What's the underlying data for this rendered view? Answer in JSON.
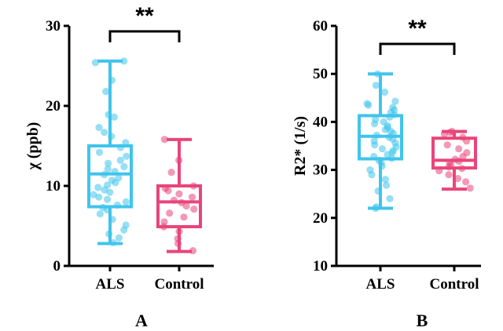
{
  "colors": {
    "als": "#40c4ec",
    "control": "#e8457a",
    "axis": "#000000"
  },
  "chart_data": [
    {
      "panel": "A",
      "type": "box",
      "ylabel": "χ (ppb)",
      "ylim": [
        0,
        30
      ],
      "yticks": [
        0,
        10,
        20,
        30
      ],
      "categories": [
        "ALS",
        "Control"
      ],
      "significance": "**",
      "series": [
        {
          "name": "ALS",
          "color": "#40c4ec",
          "box": {
            "min": 2.8,
            "q1": 7.4,
            "median": 11.5,
            "q3": 15.0,
            "max": 25.6
          },
          "points": [
            25.6,
            25.4,
            23.2,
            21.8,
            18.9,
            18.6,
            17.3,
            16.7,
            16.2,
            15.4,
            14.8,
            14.2,
            13.7,
            13.2,
            12.8,
            12.4,
            12.1,
            11.8,
            11.4,
            11.0,
            10.7,
            10.4,
            10.1,
            9.8,
            9.5,
            9.2,
            8.9,
            8.6,
            8.3,
            8.0,
            7.6,
            7.3,
            7.0,
            6.5,
            5.8,
            5.1,
            4.5,
            4.0,
            3.5,
            2.9
          ]
        },
        {
          "name": "Control",
          "color": "#e8457a",
          "box": {
            "min": 1.8,
            "q1": 4.9,
            "median": 8.0,
            "q3": 10.0,
            "max": 15.8
          },
          "points": [
            15.8,
            13.2,
            11.7,
            10.0,
            9.7,
            9.4,
            9.0,
            8.6,
            8.2,
            7.9,
            7.5,
            7.1,
            6.6,
            6.1,
            5.5,
            4.9,
            4.3,
            3.4,
            2.8,
            1.9
          ]
        }
      ]
    },
    {
      "panel": "B",
      "type": "box",
      "ylabel": "R2* (1/s)",
      "ylim": [
        10,
        60
      ],
      "yticks": [
        10,
        20,
        30,
        40,
        50,
        60
      ],
      "categories": [
        "ALS",
        "Control"
      ],
      "significance": "**",
      "series": [
        {
          "name": "ALS",
          "color": "#40c4ec",
          "box": {
            "min": 22.0,
            "q1": 32.3,
            "median": 37.0,
            "q3": 41.3,
            "max": 50.0
          },
          "points": [
            50.0,
            47.6,
            46.2,
            44.3,
            43.8,
            43.5,
            43.0,
            42.5,
            42.0,
            41.5,
            41.0,
            40.5,
            40.0,
            39.6,
            39.2,
            38.8,
            38.4,
            38.0,
            37.6,
            37.2,
            36.8,
            36.4,
            36.0,
            35.6,
            35.2,
            34.8,
            34.4,
            34.0,
            33.6,
            33.2,
            32.8,
            32.4,
            32.0,
            31.5,
            30.8,
            30.0,
            29.0,
            28.0,
            26.8,
            25.6,
            24.0,
            22.3,
            22.0
          ]
        },
        {
          "name": "Control",
          "color": "#e8457a",
          "box": {
            "min": 26.0,
            "q1": 30.4,
            "median": 32.0,
            "q3": 36.6,
            "max": 38.0
          },
          "points": [
            38.0,
            37.8,
            37.5,
            36.8,
            36.0,
            35.2,
            34.4,
            33.6,
            32.8,
            32.2,
            31.8,
            31.5,
            31.0,
            30.6,
            30.3,
            29.8,
            29.0,
            28.2,
            27.5,
            26.2
          ]
        }
      ]
    }
  ]
}
